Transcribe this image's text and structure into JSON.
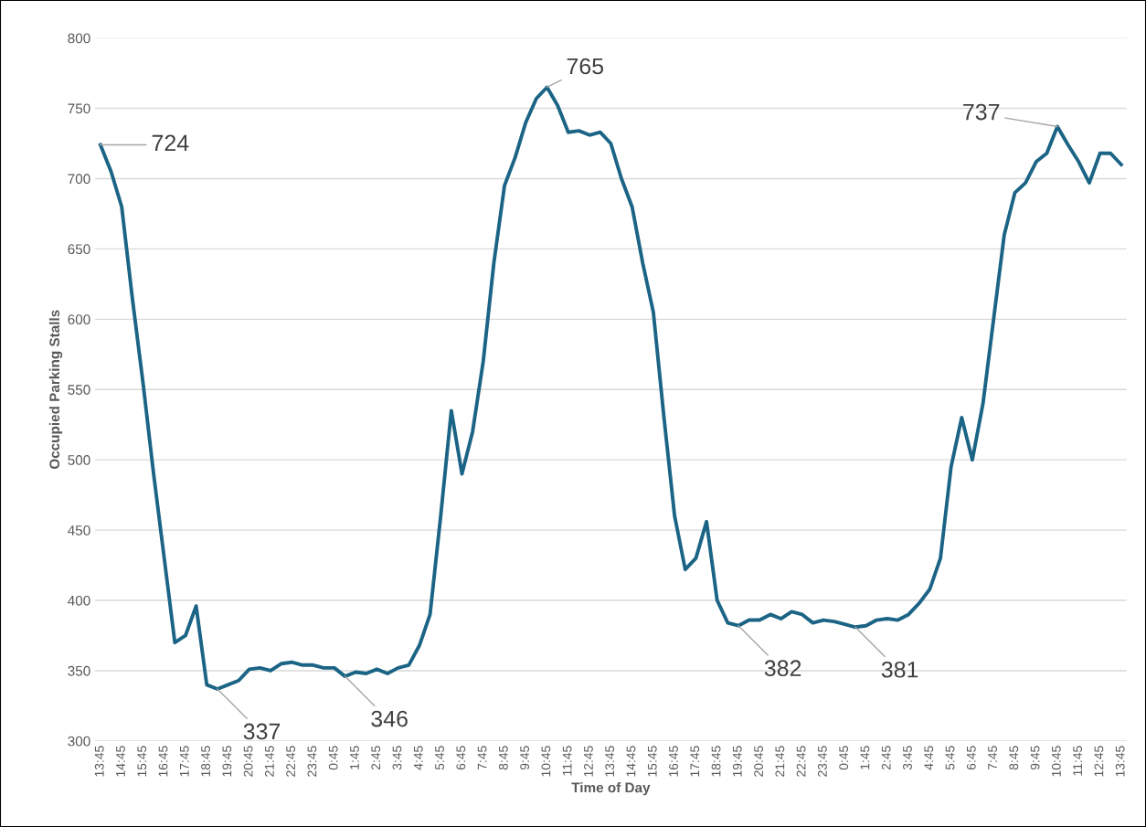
{
  "chart_data": {
    "type": "line",
    "xlabel": "Time of Day",
    "ylabel": "Occupied Parking Stalls",
    "categories": [
      "13:45",
      null,
      "14:45",
      null,
      "15:45",
      null,
      "16:45",
      null,
      "17:45",
      null,
      "18:45",
      null,
      "19:45",
      null,
      "20:45",
      null,
      "21:45",
      null,
      "22:45",
      null,
      "23:45",
      null,
      "0:45",
      null,
      "1:45",
      null,
      "2:45",
      null,
      "3:45",
      null,
      "4:45",
      null,
      "5:45",
      null,
      "6:45",
      null,
      "7:45",
      null,
      "8:45",
      null,
      "9:45",
      null,
      "10:45",
      null,
      "11:45",
      null,
      "12:45",
      null,
      "13:45",
      null,
      "14:45",
      null,
      "15:45",
      null,
      "16:45",
      null,
      "17:45",
      null,
      "18:45",
      null,
      "19:45",
      null,
      "20:45",
      null,
      "21:45",
      null,
      "22:45",
      null,
      "23:45",
      null,
      "0:45",
      null,
      "1:45",
      null,
      "2:45",
      null,
      "3:45",
      null,
      "4:45",
      null,
      "5:45",
      null,
      "6:45",
      null,
      "7:45",
      null,
      "8:45",
      null,
      "9:45",
      null,
      "10:45",
      null,
      "11:45",
      null,
      "12:45",
      null,
      "13:45"
    ],
    "series": [
      {
        "color": "#1b6485",
        "values": [
          724,
          705,
          680,
          615,
          555,
          490,
          430,
          370,
          375,
          396,
          340,
          337,
          340,
          343,
          351,
          352,
          350,
          355,
          356,
          354,
          354,
          352,
          352,
          346,
          349,
          348,
          351,
          348,
          352,
          354,
          368,
          390,
          460,
          535,
          490,
          520,
          570,
          640,
          695,
          715,
          740,
          757,
          765,
          752,
          733,
          734,
          731,
          733,
          725,
          700,
          680,
          640,
          605,
          530,
          460,
          422,
          430,
          456,
          400,
          384,
          382,
          386,
          386,
          390,
          387,
          392,
          390,
          384,
          386,
          385,
          383,
          381,
          382,
          386,
          387,
          386,
          390,
          398,
          408,
          430,
          495,
          530,
          500,
          540,
          600,
          660,
          690,
          697,
          712,
          718,
          737,
          724,
          712,
          697,
          718,
          718,
          710
        ]
      }
    ],
    "ylim": [
      300,
      800
    ],
    "yticks": [
      300,
      350,
      400,
      450,
      500,
      550,
      600,
      650,
      700,
      750,
      800
    ],
    "grid": "y",
    "marker": "none",
    "line_style": "solid",
    "value_labels": [
      "724",
      null,
      null,
      null,
      null,
      null,
      null,
      null,
      null,
      null,
      null,
      "337",
      null,
      null,
      null,
      null,
      null,
      null,
      null,
      null,
      null,
      null,
      null,
      "346",
      null,
      null,
      null,
      null,
      null,
      null,
      null,
      null,
      null,
      null,
      null,
      null,
      null,
      null,
      null,
      null,
      null,
      null,
      "765",
      null,
      null,
      null,
      null,
      null,
      null,
      null,
      null,
      null,
      null,
      null,
      null,
      null,
      null,
      null,
      null,
      null,
      "382",
      null,
      null,
      null,
      null,
      null,
      null,
      null,
      null,
      null,
      null,
      "381",
      null,
      null,
      null,
      null,
      null,
      null,
      null,
      null,
      null,
      null,
      null,
      null,
      null,
      null,
      null,
      null,
      null,
      null,
      "737",
      null,
      null,
      null,
      null,
      null,
      null
    ]
  }
}
